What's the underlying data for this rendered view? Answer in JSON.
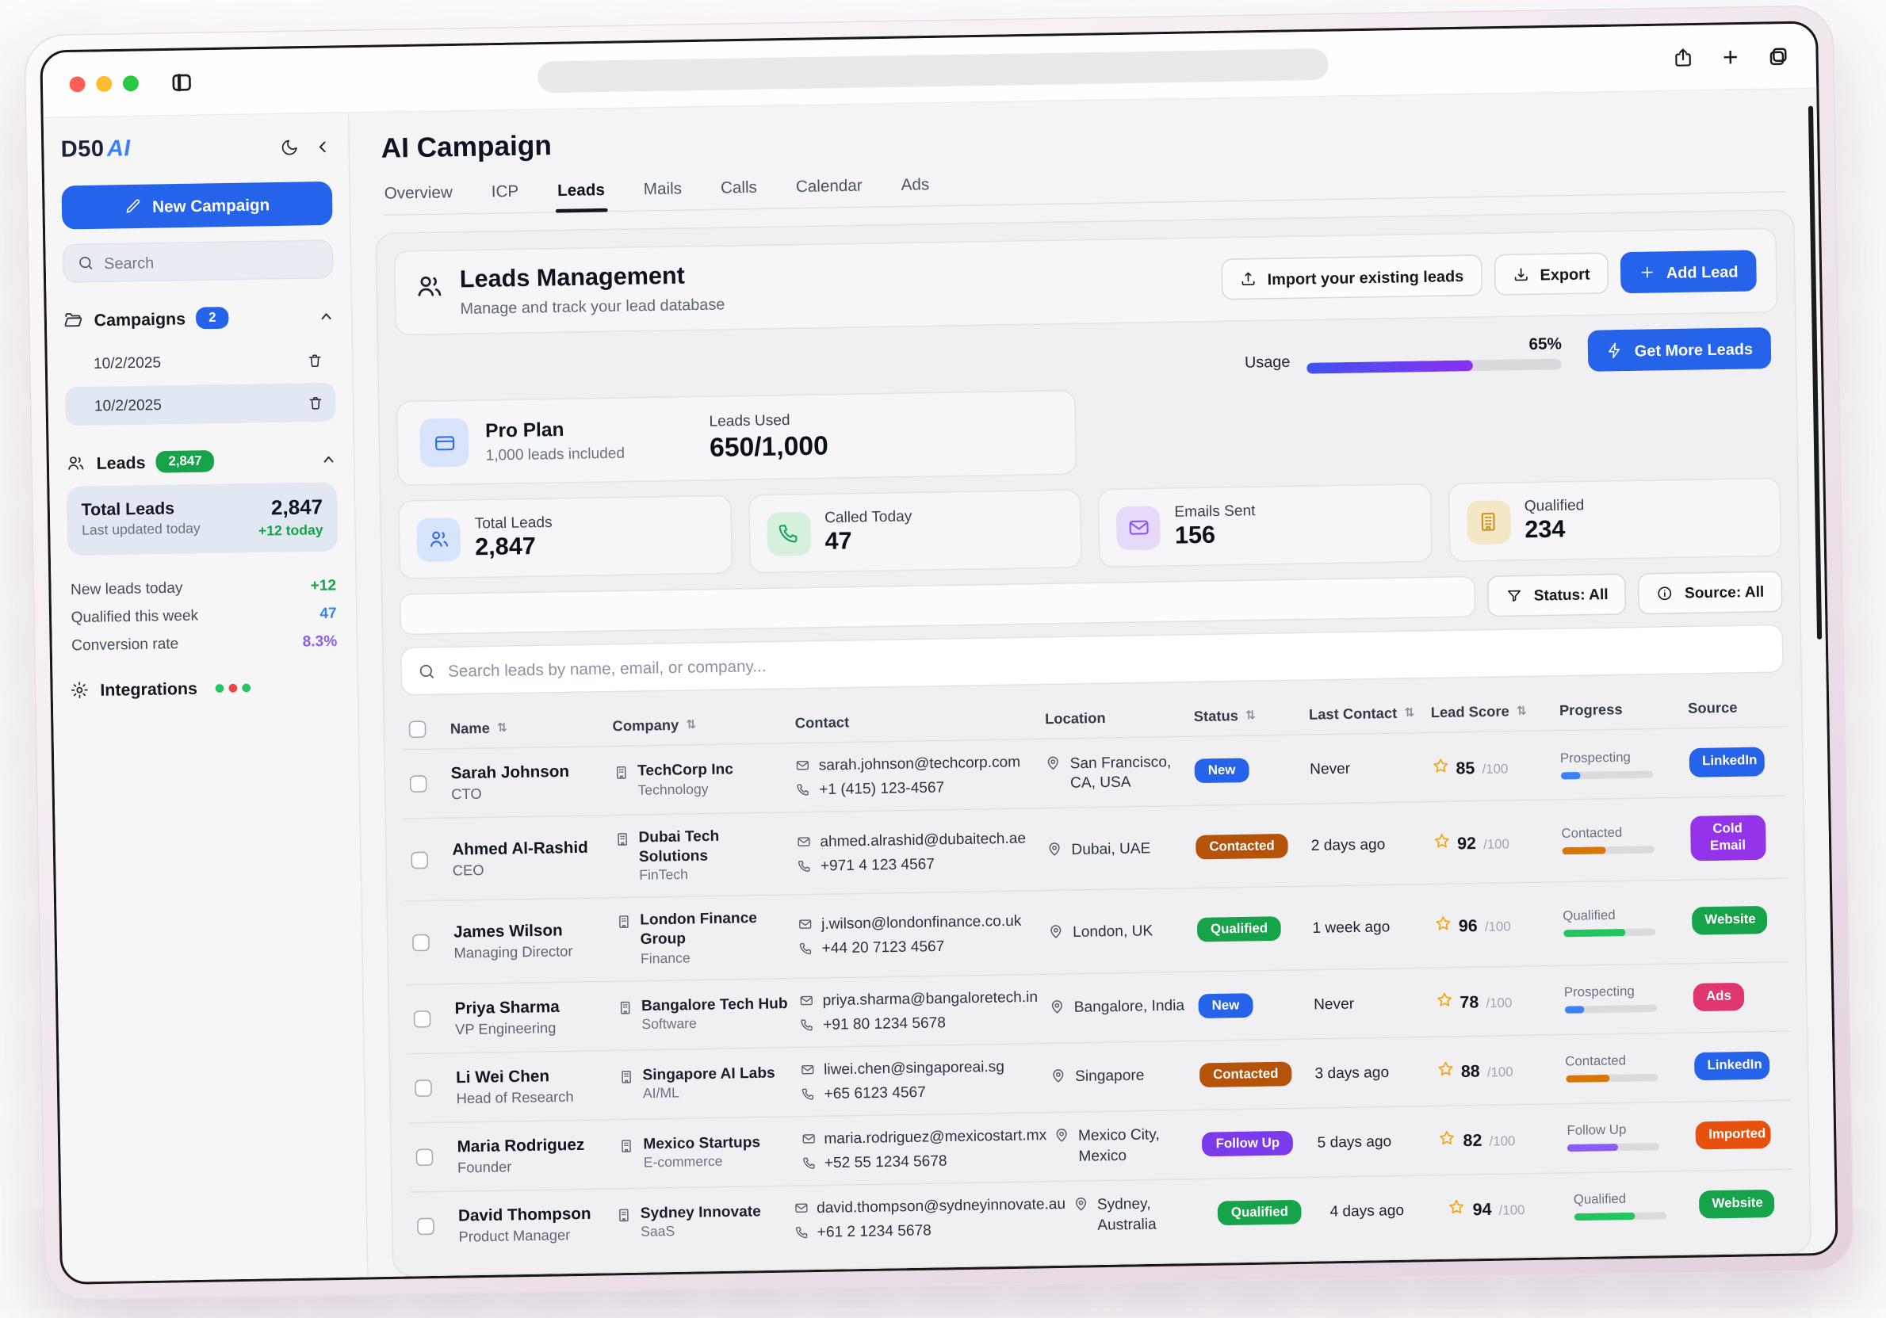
{
  "chrome": {
    "address_bar_text": "",
    "traffic_lights": [
      "#ff5f57",
      "#febc2e",
      "#28c840"
    ]
  },
  "sidebar": {
    "logo_main": "D50",
    "logo_accent": "AI",
    "new_campaign_label": "New Campaign",
    "search_placeholder": "Search",
    "campaigns": {
      "label": "Campaigns",
      "count": "2",
      "items": [
        {
          "date": "10/2/2025",
          "selected": false
        },
        {
          "date": "10/2/2025",
          "selected": true
        }
      ]
    },
    "leads_section": {
      "label": "Leads",
      "count": "2,847",
      "total_card": {
        "title": "Total Leads",
        "subtitle": "Last updated today",
        "value": "2,847",
        "delta": "+12 today",
        "delta_color": "#16a34a"
      },
      "stats": [
        {
          "label": "New leads today",
          "value": "+12",
          "color": "#16a34a"
        },
        {
          "label": "Qualified this week",
          "value": "47",
          "color": "#3b82f6"
        },
        {
          "label": "Conversion rate",
          "value": "8.3%",
          "color": "#8b5cf6"
        }
      ]
    },
    "integrations_label": "Integrations",
    "integration_dot_colors": [
      "#22c55e",
      "#ef4444",
      "#22c55e"
    ]
  },
  "header": {
    "title": "AI Campaign",
    "tabs": [
      {
        "label": "Overview",
        "active": false
      },
      {
        "label": "ICP",
        "active": false
      },
      {
        "label": "Leads",
        "active": true
      },
      {
        "label": "Mails",
        "active": false
      },
      {
        "label": "Calls",
        "active": false
      },
      {
        "label": "Calendar",
        "active": false
      },
      {
        "label": "Ads",
        "active": false
      }
    ]
  },
  "leads_management": {
    "title": "Leads Management",
    "subtitle": "Manage and track your lead database",
    "import_label": "Import your existing leads",
    "export_label": "Export",
    "add_lead_label": "Add Lead"
  },
  "usage": {
    "label": "Usage",
    "percent_label": "65%",
    "percent": 65,
    "bar_gradient": [
      "#4053f0",
      "#8b2ff5"
    ],
    "button_label": "Get More Leads"
  },
  "plan": {
    "name": "Pro Plan",
    "included": "1,000 leads included",
    "used_label": "Leads Used",
    "used_value": "650/1,000"
  },
  "stat_cards": [
    {
      "label": "Total Leads",
      "value": "2,847",
      "icon": "users-icon",
      "icon_bg": "#d7e4fc",
      "icon_color": "#2f6ef0"
    },
    {
      "label": "Called Today",
      "value": "47",
      "icon": "phone-icon",
      "icon_bg": "#d6f0de",
      "icon_color": "#1ea45c"
    },
    {
      "label": "Emails Sent",
      "value": "156",
      "icon": "mail-icon",
      "icon_bg": "#e6d9f9",
      "icon_color": "#8b5cf6"
    },
    {
      "label": "Qualified",
      "value": "234",
      "icon": "building-icon",
      "icon_bg": "#f3e7c6",
      "icon_color": "#c9972b"
    }
  ],
  "filters": {
    "status_label": "Status: All",
    "source_label": "Source: All"
  },
  "table": {
    "search_placeholder": "Search leads by name, email, or company...",
    "sort_glyph": "⇅",
    "columns": [
      {
        "label": "",
        "type": "checkbox",
        "sortable": false
      },
      {
        "label": "Name",
        "sortable": true
      },
      {
        "label": "Company",
        "sortable": true
      },
      {
        "label": "Contact",
        "sortable": false
      },
      {
        "label": "Location",
        "sortable": false
      },
      {
        "label": "Status",
        "sortable": true
      },
      {
        "label": "Last Contact",
        "sortable": true
      },
      {
        "label": "Lead Score",
        "sortable": true
      },
      {
        "label": "Progress",
        "sortable": false
      },
      {
        "label": "Source",
        "sortable": false
      }
    ],
    "rows": [
      {
        "name": "Sarah Johnson",
        "role": "CTO",
        "company": "TechCorp Inc",
        "industry": "Technology",
        "email": "sarah.johnson@techcorp.com",
        "phone": "+1 (415) 123-4567",
        "location": "San Francisco, CA, USA",
        "status": {
          "label": "New",
          "color": "#2563eb"
        },
        "last_contact": "Never",
        "score": "85",
        "score_max": "/100",
        "progress": {
          "label": "Prospecting",
          "percent": 22,
          "color": "#3b82f6"
        },
        "source": {
          "label": "LinkedIn",
          "color": "#2563eb"
        }
      },
      {
        "name": "Ahmed Al-Rashid",
        "role": "CEO",
        "company": "Dubai Tech Solutions",
        "industry": "FinTech",
        "email": "ahmed.alrashid@dubaitech.ae",
        "phone": "+971 4 123 4567",
        "location": "Dubai, UAE",
        "status": {
          "label": "Contacted",
          "color": "#b45309"
        },
        "last_contact": "2 days ago",
        "score": "92",
        "score_max": "/100",
        "progress": {
          "label": "Contacted",
          "percent": 48,
          "color": "#d97706"
        },
        "source": {
          "label": "Cold Email",
          "color": "#9333ea"
        }
      },
      {
        "name": "James Wilson",
        "role": "Managing Director",
        "company": "London Finance Group",
        "industry": "Finance",
        "email": "j.wilson@londonfinance.co.uk",
        "phone": "+44 20 7123 4567",
        "location": "London, UK",
        "status": {
          "label": "Qualified",
          "color": "#16a34a"
        },
        "last_contact": "1 week ago",
        "score": "96",
        "score_max": "/100",
        "progress": {
          "label": "Qualified",
          "percent": 68,
          "color": "#22c55e"
        },
        "source": {
          "label": "Website",
          "color": "#17a34a"
        }
      },
      {
        "name": "Priya Sharma",
        "role": "VP Engineering",
        "company": "Bangalore Tech Hub",
        "industry": "Software",
        "email": "priya.sharma@bangaloretech.in",
        "phone": "+91 80 1234 5678",
        "location": "Bangalore, India",
        "status": {
          "label": "New",
          "color": "#2563eb"
        },
        "last_contact": "Never",
        "score": "78",
        "score_max": "/100",
        "progress": {
          "label": "Prospecting",
          "percent": 22,
          "color": "#3b82f6"
        },
        "source": {
          "label": "Ads",
          "color": "#e0356f"
        }
      },
      {
        "name": "Li Wei Chen",
        "role": "Head of Research",
        "company": "Singapore AI Labs",
        "industry": "AI/ML",
        "email": "liwei.chen@singaporeai.sg",
        "phone": "+65 6123 4567",
        "location": "Singapore",
        "status": {
          "label": "Contacted",
          "color": "#b45309"
        },
        "last_contact": "3 days ago",
        "score": "88",
        "score_max": "/100",
        "progress": {
          "label": "Contacted",
          "percent": 48,
          "color": "#d97706"
        },
        "source": {
          "label": "LinkedIn",
          "color": "#2563eb"
        }
      },
      {
        "name": "Maria Rodriguez",
        "role": "Founder",
        "company": "Mexico Startups",
        "industry": "E-commerce",
        "email": "maria.rodriguez@mexicostart.mx",
        "phone": "+52 55 1234 5678",
        "location": "Mexico City, Mexico",
        "status": {
          "label": "Follow Up",
          "color": "#7c3aed"
        },
        "last_contact": "5 days ago",
        "score": "82",
        "score_max": "/100",
        "progress": {
          "label": "Follow Up",
          "percent": 55,
          "color": "#8b5cf6"
        },
        "source": {
          "label": "Imported",
          "color": "#e8500e"
        }
      },
      {
        "name": "David Thompson",
        "role": "Product Manager",
        "company": "Sydney Innovate",
        "industry": "SaaS",
        "email": "david.thompson@sydneyinnovate.au",
        "phone": "+61 2 1234 5678",
        "location": "Sydney, Australia",
        "status": {
          "label": "Qualified",
          "color": "#16a34a"
        },
        "last_contact": "4 days ago",
        "score": "94",
        "score_max": "/100",
        "progress": {
          "label": "Qualified",
          "percent": 66,
          "color": "#22c55e"
        },
        "source": {
          "label": "Website",
          "color": "#17a34a"
        }
      }
    ]
  }
}
